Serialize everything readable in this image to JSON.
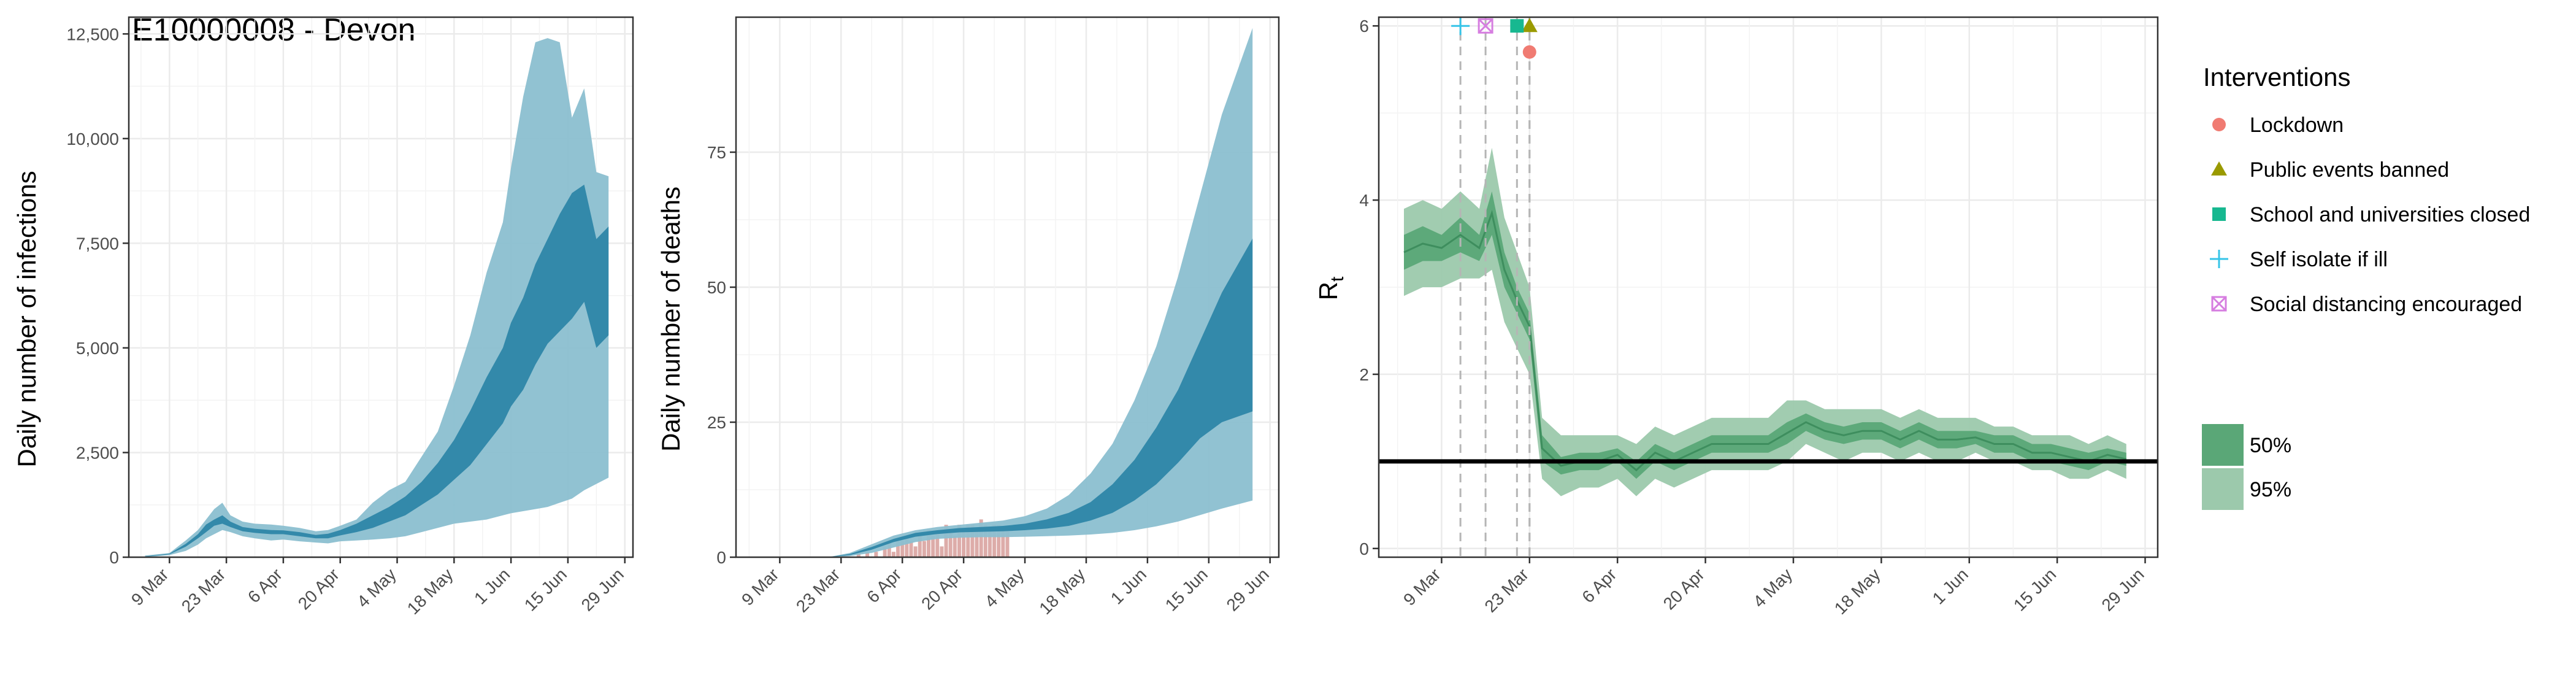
{
  "chart_data": [
    {
      "type": "area",
      "title": "E10000008 - Devon",
      "xlabel": "",
      "ylabel": "Daily number of infections",
      "x_ticks": [
        "9 Mar",
        "23 Mar",
        "6 Apr",
        "20 Apr",
        "4 May",
        "18 May",
        "1 Jun",
        "15 Jun",
        "29 Jun"
      ],
      "y_ticks": [
        "0",
        "2,500",
        "5,000",
        "7,500",
        "10,000",
        "12,500"
      ],
      "ylim": [
        0,
        12900
      ],
      "grid": true,
      "colors": {
        "band95": "#8bbfd0",
        "band50": "#2e86a8"
      },
      "x_dates": [
        "2020-03-03",
        "2020-03-09",
        "2020-03-13",
        "2020-03-16",
        "2020-03-18",
        "2020-03-20",
        "2020-03-22",
        "2020-03-24",
        "2020-03-27",
        "2020-03-30",
        "2020-04-03",
        "2020-04-06",
        "2020-04-10",
        "2020-04-14",
        "2020-04-17",
        "2020-04-20",
        "2020-04-24",
        "2020-04-28",
        "2020-05-02",
        "2020-05-06",
        "2020-05-10",
        "2020-05-14",
        "2020-05-18",
        "2020-05-22",
        "2020-05-26",
        "2020-05-30",
        "2020-06-01",
        "2020-06-04",
        "2020-06-07",
        "2020-06-10",
        "2020-06-13",
        "2020-06-16",
        "2020-06-19",
        "2020-06-22",
        "2020-06-25"
      ],
      "series": [
        {
          "name": "95%",
          "lower": [
            0,
            50,
            150,
            300,
            450,
            550,
            650,
            600,
            500,
            450,
            400,
            420,
            380,
            350,
            330,
            380,
            400,
            420,
            450,
            500,
            600,
            700,
            800,
            850,
            900,
            1000,
            1050,
            1100,
            1150,
            1200,
            1300,
            1400,
            1600,
            1750,
            1900
          ],
          "upper": [
            40,
            100,
            400,
            650,
            900,
            1150,
            1300,
            1000,
            850,
            800,
            780,
            750,
            700,
            620,
            650,
            750,
            900,
            1300,
            1600,
            1800,
            2400,
            3000,
            4100,
            5300,
            6800,
            8000,
            9300,
            11000,
            12300,
            12400,
            12300,
            10500,
            11200,
            9200,
            9100
          ]
        },
        {
          "name": "50%",
          "lower": [
            10,
            70,
            250,
            450,
            600,
            750,
            800,
            720,
            620,
            580,
            550,
            550,
            500,
            450,
            450,
            520,
            600,
            700,
            850,
            1000,
            1250,
            1500,
            1850,
            2200,
            2700,
            3200,
            3600,
            4000,
            4600,
            5100,
            5400,
            5700,
            6100,
            5000,
            5300
          ],
          "upper": [
            20,
            85,
            320,
            550,
            780,
            900,
            1000,
            850,
            720,
            680,
            650,
            640,
            600,
            530,
            560,
            650,
            800,
            1000,
            1200,
            1450,
            1800,
            2250,
            2800,
            3500,
            4300,
            5000,
            5600,
            6200,
            7000,
            7600,
            8200,
            8700,
            8900,
            7600,
            7900
          ]
        }
      ]
    },
    {
      "type": "area",
      "title": "",
      "xlabel": "",
      "ylabel": "Daily number of deaths",
      "x_ticks": [
        "9 Mar",
        "23 Mar",
        "6 Apr",
        "20 Apr",
        "4 May",
        "18 May",
        "1 Jun",
        "15 Jun",
        "29 Jun"
      ],
      "y_ticks": [
        "0",
        "25",
        "50",
        "75"
      ],
      "ylim": [
        0,
        100
      ],
      "grid": true,
      "colors": {
        "band95": "#8bbfd0",
        "band50": "#2e86a8",
        "observed": "#d9a3a0"
      },
      "x_dates": [
        "2020-03-03",
        "2020-03-15",
        "2020-03-20",
        "2020-03-25",
        "2020-03-30",
        "2020-04-04",
        "2020-04-09",
        "2020-04-14",
        "2020-04-19",
        "2020-04-24",
        "2020-04-29",
        "2020-05-04",
        "2020-05-09",
        "2020-05-14",
        "2020-05-19",
        "2020-05-24",
        "2020-05-29",
        "2020-06-03",
        "2020-06-08",
        "2020-06-13",
        "2020-06-18",
        "2020-06-25"
      ],
      "series": [
        {
          "name": "95%",
          "lower": [
            0,
            0,
            0,
            0.2,
            0.8,
            1.8,
            2.8,
            3.4,
            3.6,
            3.7,
            3.7,
            3.8,
            3.9,
            4.0,
            4.2,
            4.5,
            5.0,
            5.7,
            6.6,
            7.8,
            9.0,
            10.5
          ],
          "upper": [
            0,
            0,
            0,
            0.8,
            2.4,
            4.0,
            5.0,
            5.6,
            6.0,
            6.4,
            6.8,
            7.6,
            9.0,
            11.5,
            15.5,
            21,
            29,
            39,
            52,
            67,
            82,
            98
          ]
        },
        {
          "name": "50%",
          "lower": [
            0,
            0,
            0,
            0.4,
            1.4,
            2.8,
            3.8,
            4.3,
            4.6,
            4.7,
            4.8,
            5.0,
            5.3,
            5.8,
            6.8,
            8.2,
            10.5,
            13.5,
            17.5,
            22,
            25,
            27
          ],
          "upper": [
            0,
            0,
            0,
            0.6,
            1.9,
            3.4,
            4.5,
            5.0,
            5.4,
            5.6,
            5.8,
            6.2,
            7.0,
            8.2,
            10.2,
            13.5,
            18,
            24,
            31,
            40,
            49,
            59
          ]
        }
      ],
      "observed_bars": {
        "dates": [
          "2020-03-27",
          "2020-03-29",
          "2020-03-31",
          "2020-04-02",
          "2020-04-03",
          "2020-04-04",
          "2020-04-05",
          "2020-04-06",
          "2020-04-07",
          "2020-04-08",
          "2020-04-09",
          "2020-04-10",
          "2020-04-11",
          "2020-04-12",
          "2020-04-13",
          "2020-04-14",
          "2020-04-15",
          "2020-04-16",
          "2020-04-17",
          "2020-04-18",
          "2020-04-19",
          "2020-04-20",
          "2020-04-21",
          "2020-04-22",
          "2020-04-23",
          "2020-04-24",
          "2020-04-25",
          "2020-04-26",
          "2020-04-27",
          "2020-04-28",
          "2020-04-29",
          "2020-04-30"
        ],
        "values": [
          1,
          1,
          1,
          2,
          3,
          1,
          3,
          3,
          4,
          3,
          2,
          4,
          3,
          5,
          4,
          5,
          2,
          6,
          5,
          4,
          6,
          5,
          6,
          6,
          5,
          7,
          6,
          5,
          6,
          6,
          5,
          5
        ]
      }
    },
    {
      "type": "line",
      "title": "",
      "xlabel": "",
      "ylabel": "R",
      "ylabel_subscript": "t",
      "x_ticks": [
        "9 Mar",
        "23 Mar",
        "6 Apr",
        "20 Apr",
        "4 May",
        "18 May",
        "1 Jun",
        "15 Jun",
        "29 Jun"
      ],
      "y_ticks": [
        "0",
        "2",
        "4",
        "6"
      ],
      "ylim": [
        -0.1,
        6.1
      ],
      "grid": true,
      "reference_line": 1,
      "colors": {
        "band95": "#9cc9ac",
        "band50": "#5aa777",
        "median": "#3e8e5e",
        "reference": "#000000"
      },
      "x_dates": [
        "2020-03-03",
        "2020-03-06",
        "2020-03-09",
        "2020-03-12",
        "2020-03-15",
        "2020-03-17",
        "2020-03-19",
        "2020-03-21",
        "2020-03-23",
        "2020-03-25",
        "2020-03-28",
        "2020-03-31",
        "2020-04-03",
        "2020-04-06",
        "2020-04-09",
        "2020-04-12",
        "2020-04-15",
        "2020-04-18",
        "2020-04-21",
        "2020-04-24",
        "2020-04-27",
        "2020-04-30",
        "2020-05-03",
        "2020-05-06",
        "2020-05-09",
        "2020-05-12",
        "2020-05-15",
        "2020-05-18",
        "2020-05-21",
        "2020-05-24",
        "2020-05-27",
        "2020-05-30",
        "2020-06-02",
        "2020-06-05",
        "2020-06-08",
        "2020-06-11",
        "2020-06-14",
        "2020-06-17",
        "2020-06-20",
        "2020-06-23",
        "2020-06-26"
      ],
      "series": [
        {
          "name": "95%",
          "lower": [
            2.9,
            3.0,
            3.0,
            3.1,
            3.1,
            3.2,
            2.6,
            2.3,
            2.0,
            0.8,
            0.6,
            0.7,
            0.7,
            0.8,
            0.6,
            0.8,
            0.7,
            0.8,
            0.9,
            0.9,
            0.9,
            0.9,
            1.0,
            1.2,
            1.1,
            1.0,
            1.1,
            1.1,
            1.0,
            1.1,
            1.0,
            1.0,
            1.1,
            1.0,
            1.0,
            0.9,
            0.9,
            0.8,
            0.8,
            0.9,
            0.8
          ],
          "upper": [
            3.9,
            4.0,
            3.9,
            4.1,
            3.9,
            4.6,
            3.8,
            3.4,
            3.0,
            1.5,
            1.3,
            1.3,
            1.3,
            1.3,
            1.2,
            1.4,
            1.3,
            1.4,
            1.5,
            1.5,
            1.5,
            1.5,
            1.7,
            1.7,
            1.6,
            1.6,
            1.6,
            1.6,
            1.5,
            1.6,
            1.5,
            1.5,
            1.5,
            1.4,
            1.4,
            1.3,
            1.3,
            1.3,
            1.2,
            1.3,
            1.2
          ]
        },
        {
          "name": "50%",
          "lower": [
            3.2,
            3.3,
            3.3,
            3.4,
            3.3,
            3.6,
            3.0,
            2.7,
            2.4,
            1.0,
            0.85,
            0.9,
            0.9,
            1.0,
            0.8,
            1.0,
            0.9,
            1.0,
            1.1,
            1.1,
            1.1,
            1.1,
            1.2,
            1.35,
            1.25,
            1.2,
            1.25,
            1.25,
            1.15,
            1.25,
            1.15,
            1.15,
            1.2,
            1.1,
            1.1,
            1.0,
            1.0,
            0.95,
            0.9,
            1.0,
            0.95
          ],
          "upper": [
            3.6,
            3.7,
            3.6,
            3.8,
            3.6,
            4.1,
            3.4,
            3.0,
            2.7,
            1.3,
            1.05,
            1.1,
            1.1,
            1.15,
            1.0,
            1.2,
            1.1,
            1.2,
            1.3,
            1.3,
            1.3,
            1.3,
            1.45,
            1.55,
            1.45,
            1.4,
            1.45,
            1.45,
            1.35,
            1.45,
            1.35,
            1.35,
            1.35,
            1.3,
            1.3,
            1.2,
            1.2,
            1.15,
            1.1,
            1.15,
            1.1
          ]
        }
      ],
      "interventions": [
        {
          "label": "Lockdown",
          "date": "2020-03-23",
          "marker": "circle",
          "color": "#f07b72",
          "y": 5.7
        },
        {
          "label": "Public events banned",
          "date": "2020-03-23",
          "marker": "triangle",
          "color": "#9a9a00",
          "y": 6.0
        },
        {
          "label": "School and universities closed",
          "date": "2020-03-21",
          "marker": "square",
          "color": "#17b890",
          "y": 6.0
        },
        {
          "label": "Self isolate if ill",
          "date": "2020-03-12",
          "marker": "plus",
          "color": "#35c4e8",
          "y": 6.0
        },
        {
          "label": "Social distancing encouraged",
          "date": "2020-03-16",
          "marker": "boxx",
          "color": "#d67ee0",
          "y": 6.0
        }
      ],
      "legend": {
        "placement": "right",
        "title": "Interventions",
        "entries": [
          "Lockdown",
          "Public events banned",
          "School and universities closed",
          "Self isolate if ill",
          "Social distancing encouraged"
        ],
        "bands": [
          "50%",
          "95%"
        ]
      }
    }
  ]
}
